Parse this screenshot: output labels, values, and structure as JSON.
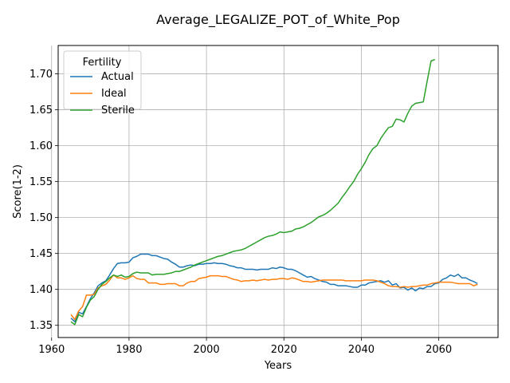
{
  "chart_data": {
    "type": "line",
    "title": "Average_LEGALIZE_POT_of_White_Pop",
    "xlabel": "Years",
    "ylabel": "Score(1-2)",
    "xlim": [
      1961.7,
      2075.3
    ],
    "ylim": [
      1.333,
      1.7395
    ],
    "xticks": [
      1960,
      1980,
      2000,
      2020,
      2040,
      2060
    ],
    "yticks": [
      1.35,
      1.4,
      1.45,
      1.5,
      1.55,
      1.6,
      1.65,
      1.7
    ],
    "xtick_labels": [
      "1960",
      "1980",
      "2000",
      "2020",
      "2040",
      "2060"
    ],
    "ytick_labels": [
      "1.35",
      "1.40",
      "1.45",
      "1.50",
      "1.55",
      "1.60",
      "1.65",
      "1.70"
    ],
    "grid": true,
    "legend": {
      "title": "Fertility",
      "position": "upper-left"
    },
    "series": [
      {
        "name": "Actual",
        "color": "#1f77b4",
        "points": [
          [
            1965,
            1.36
          ],
          [
            1966,
            1.355
          ],
          [
            1967,
            1.368
          ],
          [
            1968,
            1.366
          ],
          [
            1969,
            1.376
          ],
          [
            1970,
            1.387
          ],
          [
            1971,
            1.395
          ],
          [
            1972,
            1.405
          ],
          [
            1973,
            1.409
          ],
          [
            1974,
            1.412
          ],
          [
            1975,
            1.42
          ],
          [
            1976,
            1.429
          ],
          [
            1977,
            1.436
          ],
          [
            1978,
            1.437
          ],
          [
            1979,
            1.437
          ],
          [
            1980,
            1.438
          ],
          [
            1981,
            1.444
          ],
          [
            1982,
            1.446
          ],
          [
            1983,
            1.449
          ],
          [
            1984,
            1.449
          ],
          [
            1985,
            1.449
          ],
          [
            1986,
            1.447
          ],
          [
            1987,
            1.447
          ],
          [
            1988,
            1.445
          ],
          [
            1989,
            1.443
          ],
          [
            1990,
            1.442
          ],
          [
            1991,
            1.438
          ],
          [
            1992,
            1.435
          ],
          [
            1993,
            1.431
          ],
          [
            1994,
            1.431
          ],
          [
            1995,
            1.433
          ],
          [
            1996,
            1.434
          ],
          [
            1997,
            1.433
          ],
          [
            1998,
            1.435
          ],
          [
            1999,
            1.435
          ],
          [
            2000,
            1.436
          ],
          [
            2001,
            1.436
          ],
          [
            2002,
            1.437
          ],
          [
            2003,
            1.436
          ],
          [
            2004,
            1.436
          ],
          [
            2005,
            1.435
          ],
          [
            2006,
            1.433
          ],
          [
            2007,
            1.432
          ],
          [
            2008,
            1.43
          ],
          [
            2009,
            1.43
          ],
          [
            2010,
            1.428
          ],
          [
            2011,
            1.428
          ],
          [
            2012,
            1.428
          ],
          [
            2013,
            1.427
          ],
          [
            2014,
            1.428
          ],
          [
            2015,
            1.428
          ],
          [
            2016,
            1.428
          ],
          [
            2017,
            1.43
          ],
          [
            2018,
            1.429
          ],
          [
            2019,
            1.431
          ],
          [
            2020,
            1.43
          ],
          [
            2021,
            1.428
          ],
          [
            2022,
            1.428
          ],
          [
            2023,
            1.426
          ],
          [
            2024,
            1.423
          ],
          [
            2025,
            1.42
          ],
          [
            2026,
            1.417
          ],
          [
            2027,
            1.418
          ],
          [
            2028,
            1.415
          ],
          [
            2029,
            1.413
          ],
          [
            2030,
            1.411
          ],
          [
            2031,
            1.41
          ],
          [
            2032,
            1.407
          ],
          [
            2033,
            1.407
          ],
          [
            2034,
            1.405
          ],
          [
            2035,
            1.405
          ],
          [
            2036,
            1.405
          ],
          [
            2037,
            1.404
          ],
          [
            2038,
            1.403
          ],
          [
            2039,
            1.403
          ],
          [
            2040,
            1.406
          ],
          [
            2041,
            1.406
          ],
          [
            2042,
            1.409
          ],
          [
            2043,
            1.41
          ],
          [
            2044,
            1.411
          ],
          [
            2045,
            1.412
          ],
          [
            2046,
            1.41
          ],
          [
            2047,
            1.412
          ],
          [
            2048,
            1.406
          ],
          [
            2049,
            1.408
          ],
          [
            2050,
            1.402
          ],
          [
            2051,
            1.403
          ],
          [
            2052,
            1.399
          ],
          [
            2053,
            1.402
          ],
          [
            2054,
            1.398
          ],
          [
            2055,
            1.402
          ],
          [
            2056,
            1.401
          ],
          [
            2057,
            1.404
          ],
          [
            2058,
            1.404
          ],
          [
            2059,
            1.408
          ],
          [
            2060,
            1.409
          ],
          [
            2061,
            1.414
          ],
          [
            2062,
            1.416
          ],
          [
            2063,
            1.42
          ],
          [
            2064,
            1.418
          ],
          [
            2065,
            1.421
          ],
          [
            2066,
            1.416
          ],
          [
            2067,
            1.416
          ],
          [
            2068,
            1.413
          ],
          [
            2069,
            1.411
          ],
          [
            2070,
            1.408
          ]
        ]
      },
      {
        "name": "Ideal",
        "color": "#ff7f0e",
        "points": [
          [
            1965,
            1.365
          ],
          [
            1966,
            1.358
          ],
          [
            1967,
            1.37
          ],
          [
            1968,
            1.376
          ],
          [
            1969,
            1.392
          ],
          [
            1970,
            1.392
          ],
          [
            1971,
            1.393
          ],
          [
            1972,
            1.402
          ],
          [
            1973,
            1.405
          ],
          [
            1974,
            1.407
          ],
          [
            1975,
            1.413
          ],
          [
            1976,
            1.42
          ],
          [
            1977,
            1.416
          ],
          [
            1978,
            1.416
          ],
          [
            1979,
            1.414
          ],
          [
            1980,
            1.416
          ],
          [
            1981,
            1.419
          ],
          [
            1982,
            1.415
          ],
          [
            1983,
            1.414
          ],
          [
            1984,
            1.414
          ],
          [
            1985,
            1.409
          ],
          [
            1986,
            1.409
          ],
          [
            1987,
            1.409
          ],
          [
            1988,
            1.407
          ],
          [
            1989,
            1.407
          ],
          [
            1990,
            1.408
          ],
          [
            1991,
            1.408
          ],
          [
            1992,
            1.408
          ],
          [
            1993,
            1.405
          ],
          [
            1994,
            1.405
          ],
          [
            1995,
            1.409
          ],
          [
            1996,
            1.411
          ],
          [
            1997,
            1.411
          ],
          [
            1998,
            1.415
          ],
          [
            1999,
            1.416
          ],
          [
            2000,
            1.417
          ],
          [
            2001,
            1.419
          ],
          [
            2002,
            1.419
          ],
          [
            2003,
            1.419
          ],
          [
            2004,
            1.418
          ],
          [
            2005,
            1.418
          ],
          [
            2006,
            1.416
          ],
          [
            2007,
            1.414
          ],
          [
            2008,
            1.413
          ],
          [
            2009,
            1.411
          ],
          [
            2010,
            1.412
          ],
          [
            2011,
            1.412
          ],
          [
            2012,
            1.413
          ],
          [
            2013,
            1.412
          ],
          [
            2014,
            1.413
          ],
          [
            2015,
            1.414
          ],
          [
            2016,
            1.413
          ],
          [
            2017,
            1.414
          ],
          [
            2018,
            1.414
          ],
          [
            2019,
            1.415
          ],
          [
            2020,
            1.415
          ],
          [
            2021,
            1.414
          ],
          [
            2022,
            1.416
          ],
          [
            2023,
            1.415
          ],
          [
            2024,
            1.413
          ],
          [
            2025,
            1.411
          ],
          [
            2026,
            1.411
          ],
          [
            2027,
            1.41
          ],
          [
            2028,
            1.411
          ],
          [
            2029,
            1.412
          ],
          [
            2030,
            1.413
          ],
          [
            2031,
            1.413
          ],
          [
            2032,
            1.413
          ],
          [
            2033,
            1.413
          ],
          [
            2034,
            1.413
          ],
          [
            2035,
            1.413
          ],
          [
            2036,
            1.412
          ],
          [
            2037,
            1.412
          ],
          [
            2038,
            1.412
          ],
          [
            2039,
            1.412
          ],
          [
            2040,
            1.412
          ],
          [
            2041,
            1.413
          ],
          [
            2042,
            1.413
          ],
          [
            2043,
            1.413
          ],
          [
            2044,
            1.412
          ],
          [
            2045,
            1.41
          ],
          [
            2046,
            1.408
          ],
          [
            2047,
            1.405
          ],
          [
            2048,
            1.404
          ],
          [
            2049,
            1.404
          ],
          [
            2050,
            1.403
          ],
          [
            2051,
            1.404
          ],
          [
            2052,
            1.403
          ],
          [
            2053,
            1.404
          ],
          [
            2054,
            1.404
          ],
          [
            2055,
            1.405
          ],
          [
            2056,
            1.406
          ],
          [
            2057,
            1.406
          ],
          [
            2058,
            1.408
          ],
          [
            2059,
            1.409
          ],
          [
            2060,
            1.41
          ],
          [
            2061,
            1.41
          ],
          [
            2062,
            1.41
          ],
          [
            2063,
            1.41
          ],
          [
            2064,
            1.409
          ],
          [
            2065,
            1.408
          ],
          [
            2066,
            1.408
          ],
          [
            2067,
            1.408
          ],
          [
            2068,
            1.408
          ],
          [
            2069,
            1.405
          ],
          [
            2070,
            1.407
          ]
        ]
      },
      {
        "name": "Sterile",
        "color": "#2ca02c",
        "points": [
          [
            1965,
            1.355
          ],
          [
            1966,
            1.351
          ],
          [
            1967,
            1.365
          ],
          [
            1968,
            1.362
          ],
          [
            1969,
            1.375
          ],
          [
            1970,
            1.385
          ],
          [
            1971,
            1.39
          ],
          [
            1972,
            1.4
          ],
          [
            1973,
            1.407
          ],
          [
            1974,
            1.411
          ],
          [
            1975,
            1.416
          ],
          [
            1976,
            1.42
          ],
          [
            1977,
            1.418
          ],
          [
            1978,
            1.42
          ],
          [
            1979,
            1.417
          ],
          [
            1980,
            1.418
          ],
          [
            1981,
            1.422
          ],
          [
            1982,
            1.424
          ],
          [
            1983,
            1.423
          ],
          [
            1984,
            1.423
          ],
          [
            1985,
            1.423
          ],
          [
            1986,
            1.42
          ],
          [
            1987,
            1.421
          ],
          [
            1988,
            1.421
          ],
          [
            1989,
            1.421
          ],
          [
            1990,
            1.422
          ],
          [
            1991,
            1.423
          ],
          [
            1992,
            1.425
          ],
          [
            1993,
            1.425
          ],
          [
            1994,
            1.427
          ],
          [
            1995,
            1.429
          ],
          [
            1996,
            1.431
          ],
          [
            1997,
            1.434
          ],
          [
            1998,
            1.436
          ],
          [
            1999,
            1.438
          ],
          [
            2000,
            1.44
          ],
          [
            2001,
            1.442
          ],
          [
            2002,
            1.444
          ],
          [
            2003,
            1.446
          ],
          [
            2004,
            1.447
          ],
          [
            2005,
            1.449
          ],
          [
            2006,
            1.451
          ],
          [
            2007,
            1.453
          ],
          [
            2008,
            1.454
          ],
          [
            2009,
            1.455
          ],
          [
            2010,
            1.457
          ],
          [
            2011,
            1.46
          ],
          [
            2012,
            1.463
          ],
          [
            2013,
            1.466
          ],
          [
            2014,
            1.469
          ],
          [
            2015,
            1.472
          ],
          [
            2016,
            1.474
          ],
          [
            2017,
            1.475
          ],
          [
            2018,
            1.477
          ],
          [
            2019,
            1.48
          ],
          [
            2020,
            1.479
          ],
          [
            2021,
            1.48
          ],
          [
            2022,
            1.481
          ],
          [
            2023,
            1.484
          ],
          [
            2024,
            1.485
          ],
          [
            2025,
            1.487
          ],
          [
            2026,
            1.49
          ],
          [
            2027,
            1.493
          ],
          [
            2028,
            1.497
          ],
          [
            2029,
            1.501
          ],
          [
            2030,
            1.503
          ],
          [
            2031,
            1.506
          ],
          [
            2032,
            1.51
          ],
          [
            2033,
            1.515
          ],
          [
            2034,
            1.52
          ],
          [
            2035,
            1.528
          ],
          [
            2036,
            1.535
          ],
          [
            2037,
            1.543
          ],
          [
            2038,
            1.55
          ],
          [
            2039,
            1.56
          ],
          [
            2040,
            1.568
          ],
          [
            2041,
            1.577
          ],
          [
            2042,
            1.588
          ],
          [
            2043,
            1.596
          ],
          [
            2044,
            1.6
          ],
          [
            2045,
            1.61
          ],
          [
            2046,
            1.618
          ],
          [
            2047,
            1.625
          ],
          [
            2048,
            1.627
          ],
          [
            2049,
            1.637
          ],
          [
            2050,
            1.636
          ],
          [
            2051,
            1.633
          ],
          [
            2052,
            1.645
          ],
          [
            2053,
            1.655
          ],
          [
            2054,
            1.659
          ],
          [
            2055,
            1.66
          ],
          [
            2056,
            1.661
          ],
          [
            2057,
            1.69
          ],
          [
            2058,
            1.718
          ],
          [
            2059,
            1.72
          ]
        ]
      }
    ]
  }
}
